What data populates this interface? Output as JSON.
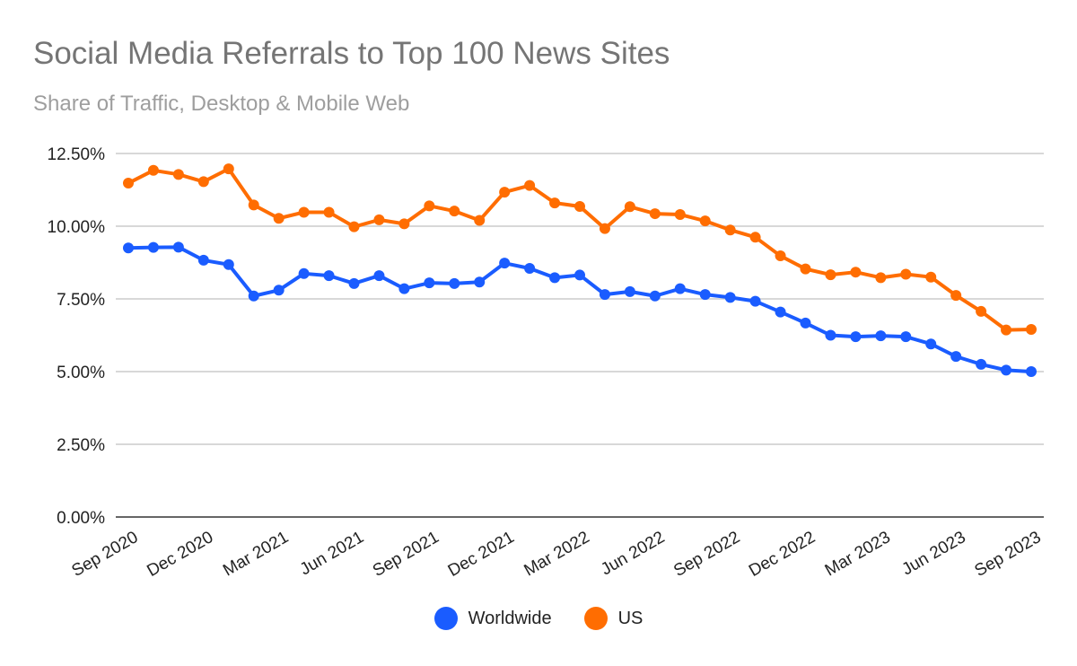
{
  "chart_data": {
    "type": "line",
    "title": "Social Media Referrals to Top 100 News Sites",
    "subtitle": "Share of Traffic, Desktop & Mobile Web",
    "xlabel": "",
    "ylabel": "",
    "ylim": [
      0,
      12.5
    ],
    "yticks": [
      "0.00%",
      "2.50%",
      "5.00%",
      "7.50%",
      "10.00%",
      "12.50%"
    ],
    "ytick_values": [
      0,
      2.5,
      5,
      7.5,
      10,
      12.5
    ],
    "x": [
      "Sep 2020",
      "Oct 2020",
      "Nov 2020",
      "Dec 2020",
      "Jan 2021",
      "Feb 2021",
      "Mar 2021",
      "Apr 2021",
      "May 2021",
      "Jun 2021",
      "Jul 2021",
      "Aug 2021",
      "Sep 2021",
      "Oct 2021",
      "Nov 2021",
      "Dec 2021",
      "Jan 2022",
      "Feb 2022",
      "Mar 2022",
      "Apr 2022",
      "May 2022",
      "Jun 2022",
      "Jul 2022",
      "Aug 2022",
      "Sep 2022",
      "Oct 2022",
      "Nov 2022",
      "Dec 2022",
      "Jan 2023",
      "Feb 2023",
      "Mar 2023",
      "Apr 2023",
      "May 2023",
      "Jun 2023",
      "Jul 2023",
      "Aug 2023",
      "Sep 2023"
    ],
    "xticks": [
      "Sep 2020",
      "Dec 2020",
      "Mar 2021",
      "Jun 2021",
      "Sep 2021",
      "Dec 2021",
      "Mar 2022",
      "Jun 2022",
      "Sep 2022",
      "Dec 2022",
      "Mar 2023",
      "Jun 2023",
      "Sep 2023"
    ],
    "grid": true,
    "legend_position": "bottom",
    "series": [
      {
        "name": "Worldwide",
        "color": "#1a5cff",
        "values": [
          9.25,
          9.27,
          9.28,
          8.83,
          8.68,
          7.6,
          7.8,
          8.37,
          8.3,
          8.03,
          8.3,
          7.85,
          8.05,
          8.03,
          8.08,
          8.73,
          8.55,
          8.23,
          8.32,
          7.65,
          7.75,
          7.6,
          7.85,
          7.65,
          7.55,
          7.42,
          7.05,
          6.67,
          6.25,
          6.2,
          6.23,
          6.2,
          5.95,
          5.52,
          5.25,
          5.05,
          5.0
        ]
      },
      {
        "name": "US",
        "color": "#ff6d01",
        "values": [
          11.48,
          11.92,
          11.78,
          11.53,
          11.97,
          10.73,
          10.27,
          10.48,
          10.48,
          9.98,
          10.22,
          10.08,
          10.7,
          10.52,
          10.2,
          11.17,
          11.4,
          10.8,
          10.68,
          9.92,
          10.67,
          10.43,
          10.4,
          10.18,
          9.87,
          9.62,
          8.98,
          8.53,
          8.33,
          8.42,
          8.23,
          8.35,
          8.25,
          7.62,
          7.07,
          6.43,
          6.45
        ]
      }
    ]
  }
}
